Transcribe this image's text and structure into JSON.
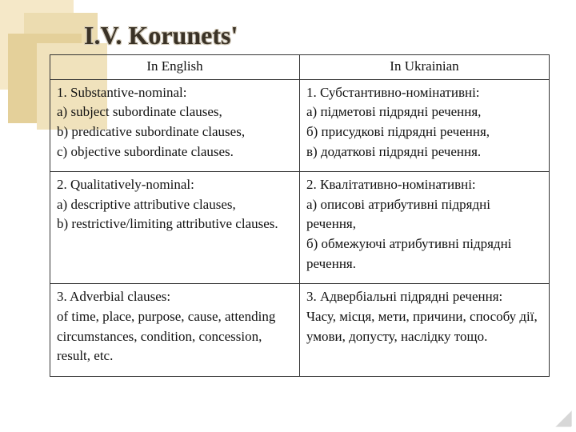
{
  "title": "I.V. Korunets'",
  "deco": {
    "colors": [
      "#f5e8c8",
      "#ecdcb0",
      "#e4d09a",
      "#f0e2bc"
    ]
  },
  "table": {
    "border_color": "#333333",
    "font_family": "Times New Roman",
    "header_fontsize": 17,
    "cell_fontsize": 17,
    "headers": [
      "In English",
      "In Ukrainian"
    ],
    "rows": [
      {
        "en": "1. Substantive-nominal:\na) subject subordinate clauses,\nb) predicative subordinate clauses,\nc) objective subordinate clauses.",
        "uk": "1. Субстантивно-номінативні:\nа) підметові підрядні речення,\nб) присудкові підрядні речення,\nв) додаткові підрядні речення."
      },
      {
        "en": "2. Qualitatively-nominal:\na) descriptive attributive clauses,\nb) restrictive/limiting attributive clauses.",
        "uk": "2. Квалітативно-номінативні:\nа) описові атрибутивні підрядні речення,\nб) обмежуючі атрибутивні підрядні речення."
      },
      {
        "en": "3. Adverbial clauses:\nof time, place, purpose, cause, attending circumstances, condition, concession, result, etc.",
        "uk": "3. Адвербіальні підрядні речення:\nЧасу, місця, мети, причини, способу дії, умови, допусту, наслідку тощо."
      }
    ]
  }
}
